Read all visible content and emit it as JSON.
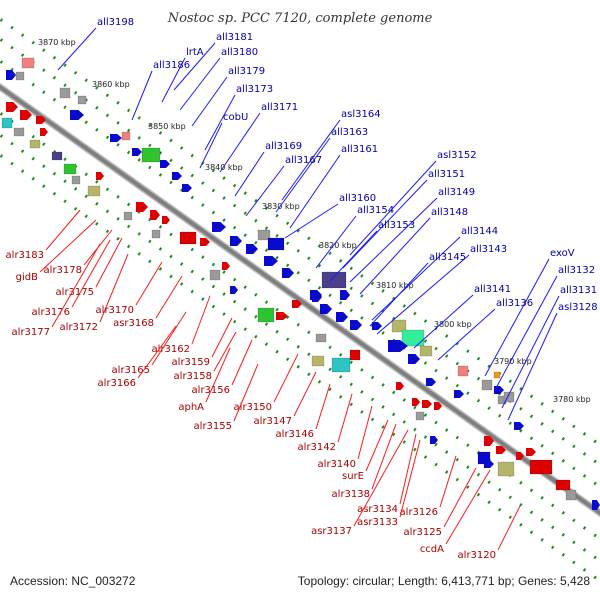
{
  "title": "Nostoc sp. PCC 7120, complete genome",
  "footer": {
    "accession": "Accession: NC_003272",
    "summary": "Topology: circular; Length: 6,413,771 bp; Genes: 5,428"
  },
  "colors": {
    "forward": "#0a0acc",
    "reverse": "#dd0000",
    "backbone": "#7f7f7f",
    "tick": "#1c8c1c"
  },
  "kbp_ticks": [
    "3870 kbp",
    "3860 kbp",
    "3850 kbp",
    "3840 kbp",
    "3830 kbp",
    "3820 kbp",
    "3810 kbp",
    "3800 kbp",
    "3790 kbp",
    "3780 kbp"
  ],
  "top_labels": [
    "all3198",
    "all3181",
    "lrtA",
    "all3180",
    "all3186",
    "all3179",
    "all3173",
    "cobU",
    "all3171",
    "asl3164",
    "all3163",
    "all3169",
    "all3161",
    "all3167",
    "asl3152",
    "all3151",
    "all3149",
    "all3160",
    "all3154",
    "all3148",
    "all3153",
    "all3144",
    "all3143",
    "all3145",
    "exoV",
    "all3132",
    "all3141",
    "all3131",
    "all3136",
    "asl3128"
  ],
  "bottom_labels": [
    "alr3183",
    "gidB",
    "alr3178",
    "alr3175",
    "alr3176",
    "alr3177",
    "alr3172",
    "alr3170",
    "asr3168",
    "alr3162",
    "alr3165",
    "alr3159",
    "alr3166",
    "alr3158",
    "alr3156",
    "aphA",
    "alr3150",
    "alr3155",
    "alr3147",
    "alr3146",
    "alr3142",
    "alr3140",
    "surE",
    "alr3138",
    "asr3134",
    "alr3126",
    "asr3133",
    "asr3137",
    "alr3125",
    "ccdA",
    "alr3120"
  ]
}
